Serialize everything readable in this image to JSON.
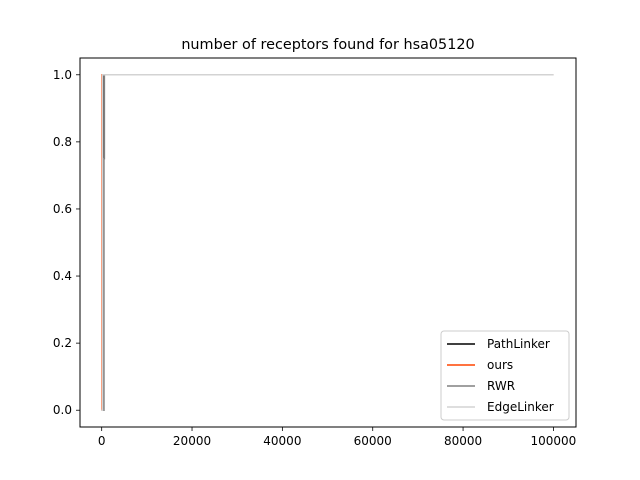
{
  "chart_data": {
    "type": "line",
    "title": "number of receptors found for hsa05120",
    "xlabel": "",
    "ylabel": "",
    "xlim": [
      -4800,
      105000
    ],
    "ylim": [
      -0.05,
      1.05
    ],
    "xticks": [
      0,
      20000,
      40000,
      60000,
      80000,
      100000
    ],
    "xtick_labels": [
      "0",
      "20000",
      "40000",
      "60000",
      "80000",
      "100000"
    ],
    "yticks": [
      0.0,
      0.2,
      0.4,
      0.6,
      0.8,
      1.0
    ],
    "ytick_labels": [
      "0.0",
      "0.2",
      "0.4",
      "0.6",
      "0.8",
      "1.0"
    ],
    "grid": false,
    "legend_position": "lower-right",
    "series": [
      {
        "name": "PathLinker",
        "color": "#000000",
        "x": [
          0,
          300,
          300,
          400,
          400,
          100000
        ],
        "y": [
          0.0,
          0.0,
          0.75,
          0.75,
          1.0,
          1.0
        ]
      },
      {
        "name": "ours",
        "color": "#ff4500",
        "x": [
          0,
          100,
          100,
          100000
        ],
        "y": [
          0.0,
          0.0,
          1.0,
          1.0
        ]
      },
      {
        "name": "RWR",
        "color": "#808080",
        "x": [
          0,
          500,
          500,
          600,
          600,
          100000
        ],
        "y": [
          0.0,
          0.0,
          0.75,
          0.75,
          1.0,
          1.0
        ]
      },
      {
        "name": "EdgeLinker",
        "color": "#d3d3d3",
        "x": [
          0,
          200,
          200,
          100000
        ],
        "y": [
          0.0,
          0.0,
          1.0,
          1.0
        ]
      }
    ]
  }
}
